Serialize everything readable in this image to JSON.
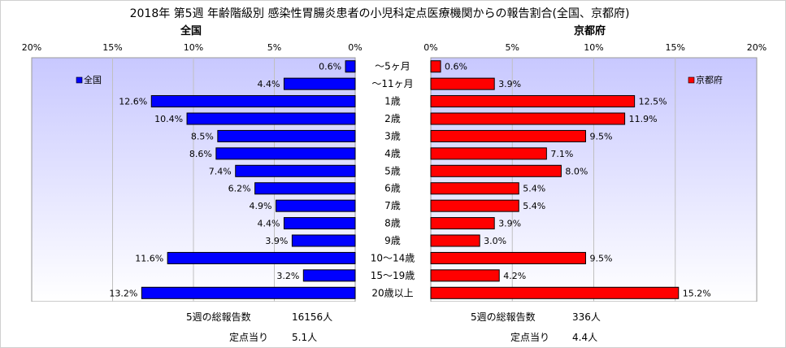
{
  "chart_data": {
    "type": "bar",
    "title": "2018年 第5週 年齢階級別 感染性胃腸炎患者の小児科定点医療機関からの報告割合(全国、京都府)",
    "categories": [
      "～5ヶ月",
      "～11ヶ月",
      "1歳",
      "2歳",
      "3歳",
      "4歳",
      "5歳",
      "6歳",
      "7歳",
      "8歳",
      "9歳",
      "10～14歳",
      "15～19歳",
      "20歳以上"
    ],
    "xlim": [
      0,
      20
    ],
    "ticks": [
      "0%",
      "5%",
      "10%",
      "15%",
      "20%"
    ],
    "grid": true,
    "panels": [
      {
        "subtitle": "全国",
        "legend": "全国",
        "legend_position": "top-left",
        "direction": "left",
        "color": "#0000FF",
        "values": [
          0.6,
          4.4,
          12.6,
          10.4,
          8.5,
          8.6,
          7.4,
          6.2,
          4.9,
          4.4,
          3.9,
          11.6,
          3.2,
          13.2
        ],
        "labels": [
          "0.6%",
          "4.4%",
          "12.6%",
          "10.4%",
          "8.5%",
          "8.6%",
          "7.4%",
          "6.2%",
          "4.9%",
          "4.4%",
          "3.9%",
          "11.6%",
          "3.2%",
          "13.2%"
        ]
      },
      {
        "subtitle": "京都府",
        "legend": "京都府",
        "legend_position": "top-right",
        "direction": "right",
        "color": "#FF0000",
        "values": [
          0.6,
          3.9,
          12.5,
          11.9,
          9.5,
          7.1,
          8.0,
          5.4,
          5.4,
          3.9,
          3.0,
          9.5,
          4.2,
          15.2
        ],
        "labels": [
          "0.6%",
          "3.9%",
          "12.5%",
          "11.9%",
          "9.5%",
          "7.1%",
          "8.0%",
          "5.4%",
          "5.4%",
          "3.9%",
          "3.0%",
          "9.5%",
          "4.2%",
          "15.2%"
        ]
      }
    ]
  },
  "footer": {
    "national": {
      "total_label": "5週の総報告数",
      "total_value": "16156人",
      "per_site_label": "定点当り",
      "per_site_value": "5.1人"
    },
    "kyoto": {
      "total_label": "5週の総報告数",
      "total_value": "336人",
      "per_site_label": "定点当り",
      "per_site_value": "4.4人"
    }
  },
  "colors": {
    "plot_background_top": "#C8C8FF",
    "plot_background_bottom": "#FFFFFF",
    "grid": "#C0C0C0"
  }
}
